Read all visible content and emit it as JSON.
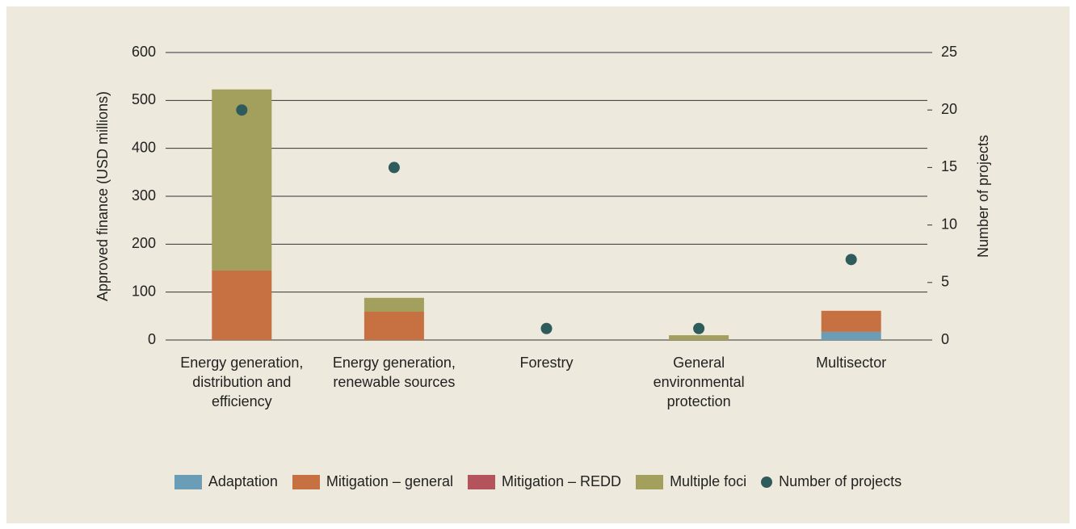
{
  "chart_data": {
    "type": "bar",
    "stacked": true,
    "categories": [
      "Energy generation, distribution and efficiency",
      "Energy generation, renewable sources",
      "Forestry",
      "General environmental protection",
      "Multisector"
    ],
    "series": [
      {
        "name": "Adaptation",
        "color": "#6c9db6",
        "values": [
          0,
          0,
          0,
          0,
          17
        ]
      },
      {
        "name": "Mitigation – general",
        "color": "#c77142",
        "values": [
          145,
          59,
          0,
          0,
          44
        ]
      },
      {
        "name": "Mitigation – REDD",
        "color": "#b5535c",
        "values": [
          0,
          0,
          0,
          0,
          0
        ]
      },
      {
        "name": "Multiple foci",
        "color": "#a39f5c",
        "values": [
          378,
          29,
          0,
          10,
          0
        ]
      },
      {
        "name": "Number of projects",
        "color": "#2e5b5b",
        "axis": "y2",
        "marker": "dot",
        "values": [
          20,
          15,
          1,
          1,
          7
        ]
      }
    ],
    "ylabel": "Approved finance (USD millions)",
    "y2label": "Number of projects",
    "ylim": [
      0,
      600
    ],
    "yticks": [
      0,
      100,
      200,
      300,
      400,
      500,
      600
    ],
    "y2lim": [
      0,
      25
    ],
    "y2ticks": [
      0,
      5,
      10,
      15,
      20,
      25
    ],
    "grid": true,
    "legend": "bottom"
  }
}
